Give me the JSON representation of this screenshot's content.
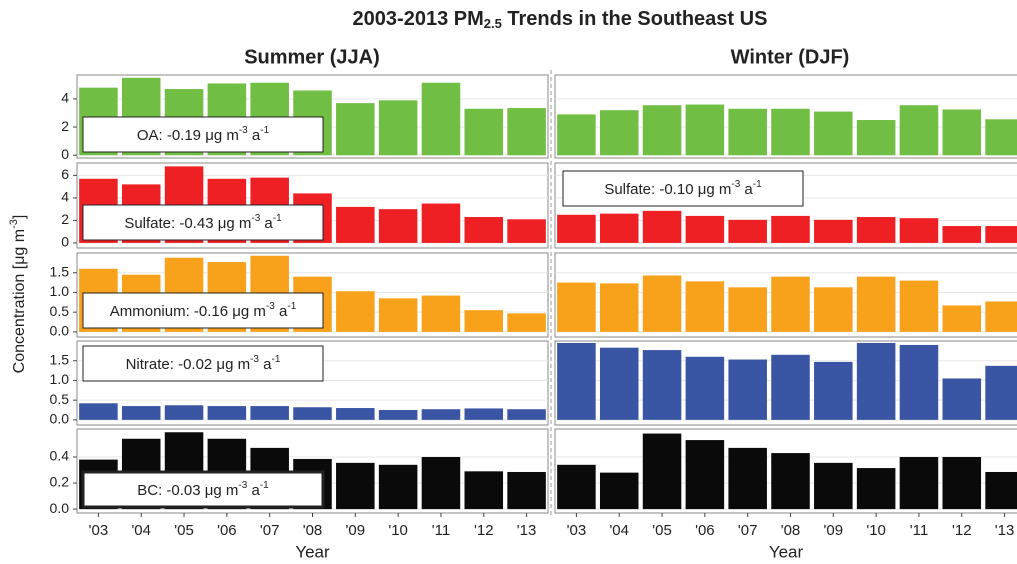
{
  "title": {
    "text": "2003-2013 PM",
    "subscript": "2.5",
    "rest": " Trends in the Southeast US"
  },
  "column_titles": [
    "Summer (JJA)",
    "Winter (DJF)"
  ],
  "y_label": [
    "Concentration [μg m",
    "-3",
    "]"
  ],
  "chart_data": [
    {
      "type": "bar",
      "color": "#70bf44",
      "ylim": [
        -0.2,
        5.7
      ],
      "yticks": [
        0,
        2,
        4
      ],
      "grid": true,
      "panels": [
        {
          "values": [
            4.8,
            5.5,
            4.7,
            5.1,
            5.15,
            4.6,
            3.7,
            3.9,
            5.15,
            3.3,
            3.35
          ],
          "annotation": [
            "OA: -0.19 μg m",
            "-3",
            " a",
            "-1"
          ]
        },
        {
          "values": [
            2.9,
            3.2,
            3.55,
            3.6,
            3.3,
            3.3,
            3.1,
            2.5,
            3.55,
            3.25,
            2.55
          ]
        }
      ]
    },
    {
      "type": "bar",
      "color": "#ee2024",
      "ylim": [
        -0.45,
        7.1
      ],
      "yticks": [
        0,
        2,
        4,
        6
      ],
      "grid": true,
      "panels": [
        {
          "values": [
            5.7,
            5.2,
            6.8,
            5.7,
            5.8,
            4.4,
            3.2,
            3.0,
            3.5,
            2.3,
            2.1
          ],
          "annotation": [
            "Sulfate: -0.43 μg m",
            "-3",
            " a",
            "-1"
          ]
        },
        {
          "values": [
            2.5,
            2.6,
            2.85,
            2.4,
            2.05,
            2.4,
            2.05,
            2.3,
            2.2,
            1.5,
            1.5
          ],
          "annotation": [
            "Sulfate: -0.10 μg m",
            "-3",
            " a",
            "-1"
          ]
        }
      ]
    },
    {
      "type": "bar",
      "color": "#f8a11b",
      "ylim": [
        -0.13,
        2.0
      ],
      "yticks": [
        {
          "value": 0,
          "label": "0.0"
        },
        0.5,
        {
          "value": 1,
          "label": "1.0"
        },
        1.5
      ],
      "grid": true,
      "panels": [
        {
          "values": [
            1.6,
            1.45,
            1.88,
            1.77,
            1.93,
            1.4,
            1.03,
            0.85,
            0.92,
            0.55,
            0.47
          ],
          "annotation": [
            "Ammonium: -0.16 μg m",
            "-3",
            " a",
            "-1"
          ]
        },
        {
          "values": [
            1.25,
            1.23,
            1.43,
            1.28,
            1.13,
            1.4,
            1.13,
            1.4,
            1.3,
            0.67,
            0.77
          ]
        }
      ]
    },
    {
      "type": "bar",
      "color": "#3a55a4",
      "ylim": [
        -0.13,
        2.0
      ],
      "yticks": [
        {
          "value": 0,
          "label": "0.0"
        },
        0.5,
        {
          "value": 1,
          "label": "1.0"
        },
        1.5
      ],
      "grid": true,
      "panels": [
        {
          "values": [
            0.42,
            0.35,
            0.37,
            0.35,
            0.35,
            0.32,
            0.3,
            0.25,
            0.27,
            0.29,
            0.27
          ],
          "annotation": [
            "Nitrate: -0.02 μg m",
            "-3",
            " a",
            "-1"
          ]
        },
        {
          "values": [
            1.95,
            1.83,
            1.77,
            1.6,
            1.53,
            1.65,
            1.47,
            1.95,
            1.9,
            1.05,
            1.37
          ]
        }
      ]
    },
    {
      "type": "bar",
      "color": "#0a0a0a",
      "ylim": [
        -0.03,
        0.615
      ],
      "yticks": [
        {
          "value": 0,
          "label": "0.0"
        },
        0.2,
        0.4
      ],
      "grid": true,
      "categories": [
        "'03",
        "'04",
        "'05",
        "'06",
        "'07",
        "'08",
        "'09",
        "'10",
        "'11",
        "'12",
        "'13"
      ],
      "x_label": "Year",
      "panels": [
        {
          "values": [
            0.38,
            0.54,
            0.59,
            0.54,
            0.47,
            0.385,
            0.355,
            0.34,
            0.4,
            0.29,
            0.285
          ],
          "annotation": [
            "BC: -0.03 μg m",
            "-3",
            " a",
            "-1"
          ]
        },
        {
          "values": [
            0.34,
            0.28,
            0.58,
            0.53,
            0.47,
            0.43,
            0.355,
            0.315,
            0.4,
            0.4,
            0.285
          ]
        }
      ]
    }
  ]
}
